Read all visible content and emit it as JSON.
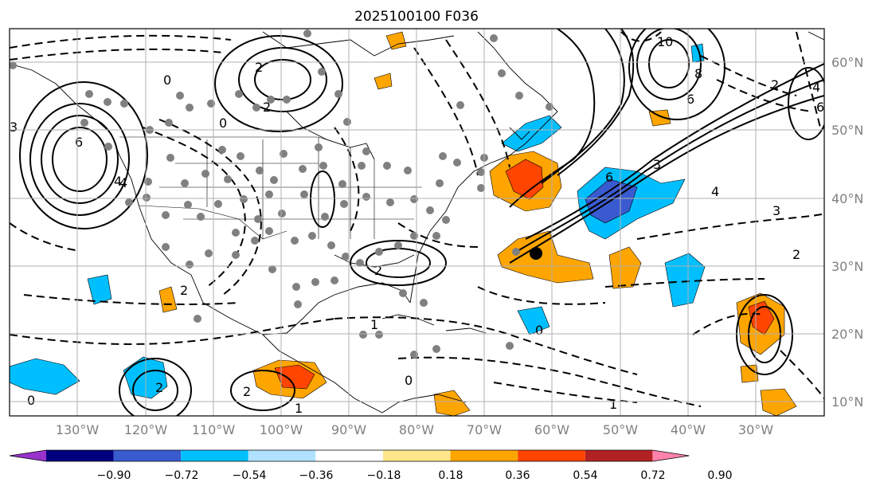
{
  "title": "2025100100 F036",
  "lon_labels": [
    "130°W",
    "120°W",
    "110°W",
    "100°W",
    "90°W",
    "80°W",
    "70°W",
    "60°W",
    "50°W",
    "40°W",
    "30°W"
  ],
  "lat_labels": [
    "60°N",
    "50°N",
    "40°N",
    "30°N",
    "20°N",
    "10°N"
  ],
  "colorbar": {
    "labels": [
      "−0.90",
      "−0.72",
      "−0.54",
      "−0.36",
      "−0.18",
      "0.18",
      "0.36",
      "0.54",
      "0.72",
      "0.90"
    ],
    "colors": [
      "#9932cc",
      "#000080",
      "#3a5bd0",
      "#00bfff",
      "#b0e2ff",
      "#ffffff",
      "#ffe68a",
      "#ffa500",
      "#ff4500",
      "#b22222",
      "#ff82ab"
    ]
  },
  "contour_labels": [
    "6",
    "4",
    "2",
    "0",
    "0",
    "2",
    "3",
    "6",
    "8",
    "10",
    "4",
    "2",
    "4",
    "6",
    "3",
    "0",
    "2",
    "4",
    "6",
    "1",
    "0",
    "2",
    "1",
    "0",
    "2",
    "1",
    "2",
    "2",
    "3"
  ],
  "colors": {
    "frame": "#000000",
    "grid": "#b0b0b0",
    "storm_marker": "#000000",
    "station_dot": "#808080"
  }
}
